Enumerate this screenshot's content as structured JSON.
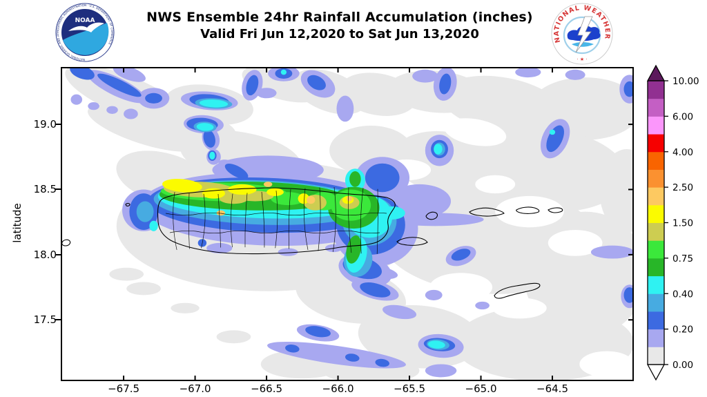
{
  "header": {
    "title_line1": "NWS Ensemble 24hr Rainfall Accumulation (inches)",
    "title_line2": "Valid Fri Jun 12,2020 to Sat Jun 13,2020",
    "noaa_logo": {
      "center_text": "NOAA",
      "ring_text": "NATIONAL OCEANIC AND ATMOSPHERIC ADMINISTRATION · U.S. DEPARTMENT OF COMMERCE",
      "navy": "#1e2e7e",
      "light_blue": "#2fa8e0"
    },
    "nws_logo": {
      "ring_text": "NATIONAL WEATHER SERVICE",
      "bottom_marks": "· ★ ·",
      "red": "#d63636",
      "cloud_blue": "#1c41cc",
      "sea_blue": "#49b6e8"
    }
  },
  "chart_data": {
    "type": "heatmap",
    "title": "NWS Ensemble 24hr Rainfall Accumulation (inches)",
    "subtitle": "Valid Fri Jun 12,2020 to Sat Jun 13,2020",
    "units": "inches",
    "xlabel": "",
    "ylabel": "latitude",
    "lon_range": [
      -67.94,
      -63.93
    ],
    "lat_range": [
      17.03,
      19.44
    ],
    "x_ticks": [
      -67.5,
      -67.0,
      -66.5,
      -66.0,
      -65.5,
      -65.0,
      -64.5
    ],
    "x_tick_labels": [
      "−67.5",
      "−67.0",
      "−66.5",
      "−66.0",
      "−65.5",
      "−65.0",
      "−64.5"
    ],
    "y_ticks": [
      19.0,
      18.5,
      18.0,
      17.5
    ],
    "y_tick_labels": [
      "19.0",
      "18.5",
      "18.0",
      "17.5"
    ],
    "grid": false,
    "colorbar": {
      "position": "right",
      "labels_top_to_bottom": [
        "10.00",
        "6.00",
        "4.00",
        "2.50",
        "1.50",
        "0.75",
        "0.40",
        "0.20",
        "0.00"
      ],
      "levels": [
        0.0,
        0.1,
        0.2,
        0.3,
        0.4,
        0.5,
        0.75,
        1.0,
        1.5,
        2.0,
        2.5,
        3.0,
        4.0,
        5.0,
        6.0,
        8.0,
        10.0
      ],
      "colors_bottom_to_top": [
        "#e8e8e8",
        "#a8a8f0",
        "#3c6ae1",
        "#47abe1",
        "#2ff2f2",
        "#28b628",
        "#3be83b",
        "#cdcd51",
        "#fbfb00",
        "#fdc961",
        "#fb9130",
        "#f96400",
        "#f60000",
        "#fb96fb",
        "#c45fc4",
        "#913091"
      ],
      "arrow_top_color": "#5c195c",
      "arrow_bottom_color": "#ffffff"
    },
    "palette": {
      "gray": "#e8e8e8",
      "white": "#ffffff",
      "lavender": "#a8a8f0",
      "blue": "#3c6ae1",
      "skyblue": "#47abe1",
      "cyan": "#2ff2f2",
      "green": "#28b628",
      "brightgreen": "#3be83b",
      "olive": "#cdcd51",
      "yellow": "#fbfb00",
      "tan": "#fdc961"
    },
    "level_order": [
      "gray",
      "white",
      "lavender",
      "blue",
      "skyblue",
      "cyan",
      "green",
      "brightgreen",
      "olive",
      "yellow",
      "tan"
    ],
    "level_ranges_inches": {
      "gray": "0.00-0.10",
      "lavender": "0.10-0.20",
      "blue": "0.20-0.30",
      "skyblue": "0.30-0.40",
      "cyan": "0.40-0.50",
      "green": "0.50-0.75",
      "brightgreen": "0.75-1.00",
      "olive": "1.00-1.50",
      "yellow": "1.50-2.00",
      "tan": "2.00-2.50"
    },
    "features": {
      "gray": [
        [
          -67.48,
          19.22,
          0.46,
          0.15,
          22
        ],
        [
          -67.36,
          18.97,
          0.41,
          0.12,
          18
        ],
        [
          -66.9,
          19.15,
          0.31,
          0.15,
          8
        ],
        [
          -66.95,
          18.96,
          0.24,
          0.11,
          10
        ],
        [
          -66.39,
          19.31,
          0.29,
          0.12,
          15
        ],
        [
          -66.06,
          19.25,
          0.27,
          0.15,
          20
        ],
        [
          -65.72,
          19.23,
          0.27,
          0.16,
          10
        ],
        [
          -65.31,
          19.25,
          0.34,
          0.16,
          5
        ],
        [
          -64.85,
          19.15,
          0.43,
          0.21,
          10
        ],
        [
          -64.27,
          19.12,
          0.39,
          0.24,
          0
        ],
        [
          -64.56,
          18.65,
          0.58,
          0.32,
          5
        ],
        [
          -65.23,
          18.7,
          0.39,
          0.24,
          10
        ],
        [
          -64.94,
          18.12,
          0.77,
          0.42,
          3
        ],
        [
          -64.27,
          17.85,
          0.43,
          0.48,
          0
        ],
        [
          -64.56,
          17.32,
          0.63,
          0.29,
          0
        ],
        [
          -65.43,
          17.37,
          0.43,
          0.24,
          5
        ],
        [
          -65.91,
          17.69,
          0.39,
          0.21,
          10
        ],
        [
          -66.49,
          18.22,
          1.06,
          0.5,
          0
        ],
        [
          -67.22,
          18.59,
          0.34,
          0.19,
          15
        ],
        [
          -66.68,
          18.75,
          0.43,
          0.19,
          10
        ],
        [
          -65.77,
          18.8,
          0.29,
          0.19,
          0
        ],
        [
          -67.36,
          17.74,
          0.12,
          0.05,
          0
        ],
        [
          -67.07,
          17.59,
          0.1,
          0.04,
          0
        ],
        [
          -66.73,
          17.37,
          0.12,
          0.05,
          0
        ],
        [
          -66.25,
          17.16,
          0.29,
          0.11,
          0
        ],
        [
          -65.77,
          17.11,
          0.34,
          0.1,
          0
        ],
        [
          -63.98,
          18.49,
          0.19,
          0.32,
          0
        ],
        [
          -67.48,
          17.85,
          0.12,
          0.05,
          0
        ]
      ],
      "white": [
        [
          -65.04,
          18.94,
          0.22,
          0.1,
          10
        ],
        [
          -64.66,
          18.33,
          0.24,
          0.12,
          0
        ],
        [
          -64.34,
          18.09,
          0.19,
          0.1,
          0
        ],
        [
          -65.14,
          17.75,
          0.22,
          0.11,
          0
        ],
        [
          -64.73,
          17.59,
          0.19,
          0.08,
          0
        ],
        [
          -64.12,
          17.16,
          0.19,
          0.1,
          0
        ],
        [
          -64.9,
          18.54,
          0.14,
          0.07,
          0
        ],
        [
          -65.52,
          18.65,
          0.17,
          0.08,
          0
        ]
      ],
      "lavender": [
        [
          -66.49,
          18.35,
          0.89,
          0.28,
          2
        ],
        [
          -67.36,
          18.34,
          0.15,
          0.16,
          0
        ],
        [
          -65.74,
          18.2,
          0.3,
          0.29,
          0
        ],
        [
          -65.81,
          17.88,
          0.19,
          0.12,
          15
        ],
        [
          -65.69,
          18.59,
          0.19,
          0.16,
          0
        ],
        [
          -66.49,
          18.65,
          0.39,
          0.11,
          0
        ],
        [
          -65.43,
          18.41,
          0.22,
          0.13,
          0
        ],
        [
          -67.55,
          19.29,
          0.23,
          0.07,
          26
        ],
        [
          -67.29,
          19.2,
          0.11,
          0.08,
          0
        ],
        [
          -67.83,
          19.19,
          0.04,
          0.04,
          0
        ],
        [
          -67.71,
          19.14,
          0.04,
          0.03,
          0
        ],
        [
          -67.58,
          19.11,
          0.04,
          0.03,
          0
        ],
        [
          -67.45,
          19.08,
          0.05,
          0.04,
          0
        ],
        [
          -66.9,
          19.18,
          0.2,
          0.07,
          5
        ],
        [
          -66.94,
          19.0,
          0.14,
          0.07,
          3
        ],
        [
          -66.89,
          18.89,
          0.06,
          0.09,
          -15
        ],
        [
          -66.87,
          18.75,
          0.05,
          0.06,
          0
        ],
        [
          -66.71,
          18.64,
          0.14,
          0.06,
          28
        ],
        [
          -66.6,
          19.3,
          0.07,
          0.12,
          15
        ],
        [
          -66.5,
          19.24,
          0.07,
          0.04,
          0
        ],
        [
          -66.38,
          19.39,
          0.11,
          0.06,
          0
        ],
        [
          -66.14,
          19.31,
          0.13,
          0.09,
          30
        ],
        [
          -65.95,
          19.12,
          0.06,
          0.1,
          0
        ],
        [
          -65.25,
          19.31,
          0.08,
          0.13,
          10
        ],
        [
          -65.39,
          19.37,
          0.09,
          0.05,
          0
        ],
        [
          -65.29,
          18.8,
          0.1,
          0.12,
          0
        ],
        [
          -64.48,
          18.89,
          0.09,
          0.16,
          25
        ],
        [
          -63.96,
          19.27,
          0.07,
          0.11,
          0
        ],
        [
          -65.74,
          17.87,
          0.16,
          0.05,
          10
        ],
        [
          -65.74,
          17.73,
          0.17,
          0.07,
          15
        ],
        [
          -65.57,
          17.56,
          0.12,
          0.05,
          10
        ],
        [
          -66.14,
          17.4,
          0.15,
          0.06,
          10
        ],
        [
          -66.01,
          17.23,
          0.49,
          0.07,
          8
        ],
        [
          -65.28,
          17.3,
          0.16,
          0.09,
          5
        ],
        [
          -65.14,
          17.99,
          0.11,
          0.07,
          -20
        ],
        [
          -65.32,
          18.27,
          0.34,
          0.05,
          0
        ],
        [
          -64.08,
          18.02,
          0.15,
          0.05,
          0
        ],
        [
          -63.96,
          17.68,
          0.06,
          0.09,
          0
        ],
        [
          -65.28,
          17.11,
          0.11,
          0.05,
          0
        ],
        [
          -67.46,
          19.39,
          0.12,
          0.05,
          20
        ],
        [
          -64.67,
          19.4,
          0.09,
          0.04,
          0
        ],
        [
          -64.34,
          19.38,
          0.07,
          0.04,
          0
        ],
        [
          -65.33,
          17.69,
          0.06,
          0.04,
          0
        ],
        [
          -64.99,
          17.61,
          0.05,
          0.03,
          0
        ],
        [
          -66.83,
          18.05,
          0.09,
          0.04,
          0
        ],
        [
          -66.35,
          18.02,
          0.07,
          0.03,
          0
        ],
        [
          -66.03,
          18.05,
          0.06,
          0.03,
          0
        ]
      ],
      "blue": [
        [
          -66.51,
          18.38,
          0.82,
          0.21,
          2
        ],
        [
          -67.36,
          18.33,
          0.1,
          0.14,
          0
        ],
        [
          -65.77,
          18.23,
          0.24,
          0.23,
          0
        ],
        [
          -65.83,
          17.9,
          0.14,
          0.08,
          15
        ],
        [
          -65.69,
          18.59,
          0.12,
          0.11,
          0
        ],
        [
          -65.65,
          18.35,
          0.05,
          0.04,
          0
        ],
        [
          -67.53,
          19.3,
          0.17,
          0.04,
          26
        ],
        [
          -67.79,
          19.4,
          0.09,
          0.05,
          20
        ],
        [
          -67.29,
          19.2,
          0.06,
          0.04,
          0
        ],
        [
          -66.9,
          19.18,
          0.14,
          0.05,
          5
        ],
        [
          -66.95,
          19.0,
          0.11,
          0.05,
          3
        ],
        [
          -66.9,
          18.89,
          0.04,
          0.07,
          -15
        ],
        [
          -66.71,
          18.64,
          0.09,
          0.04,
          28
        ],
        [
          -66.6,
          19.3,
          0.04,
          0.08,
          15
        ],
        [
          -66.38,
          19.39,
          0.06,
          0.04,
          0
        ],
        [
          -66.15,
          19.32,
          0.07,
          0.05,
          30
        ],
        [
          -65.25,
          19.31,
          0.04,
          0.08,
          10
        ],
        [
          -65.29,
          18.81,
          0.06,
          0.07,
          0
        ],
        [
          -64.48,
          18.89,
          0.05,
          0.11,
          25
        ],
        [
          -63.96,
          19.27,
          0.04,
          0.06,
          0
        ],
        [
          -65.74,
          17.73,
          0.11,
          0.05,
          15
        ],
        [
          -66.14,
          17.41,
          0.09,
          0.04,
          10
        ],
        [
          -65.29,
          17.31,
          0.11,
          0.05,
          5
        ],
        [
          -65.14,
          18.0,
          0.07,
          0.04,
          -20
        ],
        [
          -63.96,
          17.69,
          0.04,
          0.06,
          0
        ],
        [
          -66.32,
          17.28,
          0.05,
          0.03,
          8
        ],
        [
          -65.9,
          17.21,
          0.05,
          0.03,
          8
        ],
        [
          -65.69,
          17.17,
          0.05,
          0.03,
          8
        ],
        [
          -66.88,
          18.76,
          0.03,
          0.04,
          0
        ],
        [
          -66.95,
          18.09,
          0.03,
          0.03,
          0
        ]
      ],
      "skyblue": [
        [
          -66.53,
          18.4,
          0.76,
          0.17,
          2
        ],
        [
          -65.78,
          18.26,
          0.19,
          0.19,
          0
        ],
        [
          -67.35,
          18.33,
          0.06,
          0.08,
          0
        ],
        [
          -65.86,
          17.96,
          0.1,
          0.13,
          10
        ],
        [
          -66.87,
          19.16,
          0.13,
          0.04,
          3
        ],
        [
          -66.93,
          18.98,
          0.08,
          0.04,
          3
        ],
        [
          -65.3,
          17.31,
          0.08,
          0.04,
          5
        ],
        [
          -65.29,
          18.81,
          0.04,
          0.05,
          0
        ]
      ],
      "cyan": [
        [
          -66.54,
          18.42,
          0.72,
          0.14,
          2
        ],
        [
          -65.78,
          18.29,
          0.16,
          0.16,
          0
        ],
        [
          -65.87,
          18.0,
          0.07,
          0.14,
          12
        ],
        [
          -65.62,
          18.32,
          0.09,
          0.05,
          0
        ],
        [
          -65.88,
          18.57,
          0.07,
          0.09,
          0
        ],
        [
          -66.87,
          19.16,
          0.1,
          0.03,
          3
        ],
        [
          -66.93,
          18.98,
          0.06,
          0.03,
          3
        ],
        [
          -66.88,
          18.76,
          0.02,
          0.03,
          0
        ],
        [
          -65.3,
          18.81,
          0.03,
          0.04,
          0
        ],
        [
          -65.31,
          17.31,
          0.06,
          0.03,
          5
        ],
        [
          -66.38,
          19.4,
          0.02,
          0.02,
          0
        ],
        [
          -64.5,
          18.94,
          0.02,
          0.02,
          0
        ],
        [
          -67.29,
          18.22,
          0.03,
          0.04,
          0
        ]
      ],
      "green": [
        [
          -66.6,
          18.45,
          0.65,
          0.11,
          1
        ],
        [
          -65.89,
          18.36,
          0.18,
          0.16,
          0
        ],
        [
          -65.89,
          18.04,
          0.05,
          0.11,
          12
        ],
        [
          -65.88,
          18.58,
          0.04,
          0.06,
          0
        ]
      ],
      "brightgreen": [
        [
          -66.8,
          18.48,
          0.44,
          0.07,
          1
        ],
        [
          -65.91,
          18.38,
          0.14,
          0.12,
          0
        ],
        [
          -66.35,
          18.43,
          0.12,
          0.05,
          0
        ],
        [
          -66.1,
          18.41,
          0.1,
          0.07,
          0
        ]
      ],
      "olive": [
        [
          -66.97,
          18.5,
          0.25,
          0.06,
          2
        ],
        [
          -66.58,
          18.45,
          0.13,
          0.04,
          0
        ],
        [
          -66.16,
          18.4,
          0.08,
          0.06,
          0
        ],
        [
          -65.92,
          18.4,
          0.07,
          0.05,
          0
        ],
        [
          -66.73,
          18.43,
          0.1,
          0.04,
          0
        ]
      ],
      "yellow": [
        [
          -67.09,
          18.53,
          0.14,
          0.05,
          5
        ],
        [
          -66.87,
          18.47,
          0.08,
          0.04,
          0
        ],
        [
          -66.67,
          18.5,
          0.1,
          0.04,
          0
        ],
        [
          -66.44,
          18.48,
          0.06,
          0.03,
          0
        ],
        [
          -66.24,
          18.43,
          0.04,
          0.04,
          0
        ],
        [
          -65.93,
          18.42,
          0.04,
          0.03,
          0
        ]
      ],
      "tan": [
        [
          -66.82,
          18.32,
          0.03,
          0.02,
          0
        ],
        [
          -66.19,
          18.42,
          0.03,
          0.03,
          0
        ],
        [
          -66.49,
          18.54,
          0.03,
          0.02,
          0
        ],
        [
          -65.92,
          18.43,
          0.02,
          0.02,
          0
        ]
      ]
    },
    "islands": [
      "Puerto Rico",
      "Vieques",
      "Culebra",
      "St. Thomas",
      "Tortola",
      "Virgin Gorda",
      "St. Croix",
      "Mona",
      "Desecheo"
    ]
  }
}
